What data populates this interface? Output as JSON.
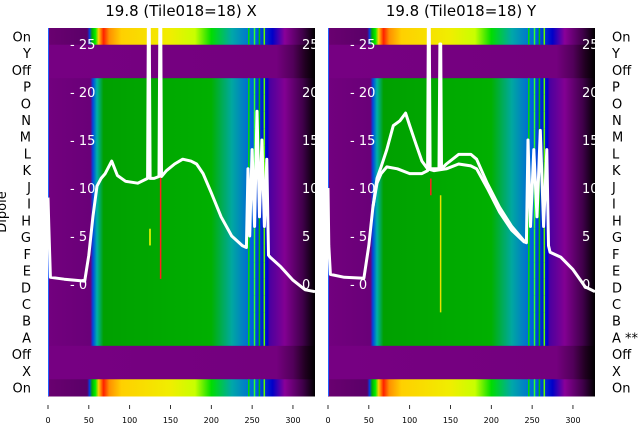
{
  "chart_data": [
    {
      "type": "heatmap",
      "title": "19.8 (Tile018=18) X",
      "ylabel": "Dipole",
      "xlim": [
        0,
        327
      ],
      "xticks": [
        0,
        50,
        100,
        150,
        200,
        250,
        300
      ],
      "rows": [
        "On",
        "Y",
        "Off",
        "P",
        "O",
        "N",
        "M",
        "L",
        "K",
        "J",
        "I",
        "H",
        "G",
        "F",
        "E",
        "D",
        "C",
        "B",
        "A",
        "Off",
        "X",
        "On"
      ],
      "row_kinds": [
        "on",
        "off",
        "off",
        "dipole",
        "dipole",
        "dipole",
        "dipole",
        "dipole",
        "dipole",
        "dipole",
        "dipole",
        "dipole",
        "dipole",
        "dipole",
        "dipole",
        "dipole",
        "dipole",
        "dipole",
        "dipole",
        "off",
        "off",
        "on"
      ],
      "overlay_ylim": [
        -3,
        26
      ],
      "overlay_yticks": [
        0,
        5,
        10,
        15,
        20,
        25
      ],
      "traces": [
        {
          "x": [
            0,
            1,
            3,
            20,
            45,
            50,
            55,
            60,
            65,
            70,
            78,
            85,
            95,
            110,
            122,
            123,
            124,
            125,
            130,
            136,
            137,
            138,
            139,
            145,
            155,
            165,
            175,
            182,
            190,
            200,
            212,
            225,
            238,
            243,
            245,
            247,
            250,
            253,
            256,
            259,
            262,
            265,
            268,
            270,
            272,
            285,
            300,
            315,
            327
          ],
          "y": [
            9,
            6,
            0.7,
            0.5,
            0.3,
            3,
            7,
            10.2,
            11,
            11.5,
            12.8,
            11.3,
            10.7,
            10.5,
            11,
            28,
            28,
            11,
            11,
            11.2,
            28,
            28,
            11.2,
            11.8,
            12.5,
            13,
            12.8,
            12.5,
            11.5,
            9.5,
            7,
            5,
            4,
            3.8,
            12,
            5,
            14,
            6,
            18,
            7,
            15,
            6,
            13,
            3,
            2.8,
            1.8,
            0.4,
            -0.6,
            -0.8
          ]
        }
      ]
    },
    {
      "type": "heatmap",
      "title": "19.8 (Tile018=18) Y",
      "xlim": [
        0,
        327
      ],
      "xticks": [
        0,
        50,
        100,
        150,
        200,
        250,
        300
      ],
      "rows": [
        "On",
        "Y",
        "Off",
        "P",
        "O",
        "N",
        "M",
        "L",
        "K",
        "J",
        "I",
        "H",
        "G",
        "F",
        "E",
        "D",
        "C",
        "B",
        "A **",
        "Off",
        "X",
        "On"
      ],
      "row_kinds": [
        "on",
        "off",
        "off",
        "dipole",
        "dipole",
        "dipole",
        "dipole",
        "dipole",
        "dipole",
        "dipole",
        "dipole",
        "dipole",
        "dipole",
        "dipole",
        "dipole",
        "dipole",
        "dipole",
        "dipole",
        "dipole",
        "off",
        "off",
        "on"
      ],
      "overlay_ylim": [
        -3,
        26
      ],
      "overlay_yticks": [
        0,
        5,
        10,
        15,
        20,
        25
      ],
      "traces": [
        {
          "x": [
            0,
            1,
            3,
            20,
            44,
            50,
            55,
            60,
            65,
            72,
            85,
            100,
            115,
            122,
            123,
            124,
            125,
            130,
            136,
            137,
            138,
            139,
            145,
            160,
            175,
            182,
            195,
            210,
            225,
            240,
            243,
            245,
            248,
            252,
            256,
            260,
            264,
            268,
            270,
            272,
            285,
            300,
            315,
            327
          ],
          "y": [
            10,
            4,
            1,
            0.7,
            0.6,
            4,
            8,
            10.5,
            11.5,
            12.2,
            12,
            11.5,
            11.5,
            11.8,
            28,
            28,
            12,
            12,
            12,
            25,
            25,
            12,
            12.5,
            13.5,
            13.5,
            13,
            10.5,
            8,
            6,
            4.5,
            4.3,
            15,
            6,
            14,
            7,
            16,
            6,
            14,
            4,
            3.3,
            2.8,
            1.5,
            -0.3,
            -0.8
          ]
        },
        {
          "x": [
            55,
            60,
            65,
            72,
            80,
            88,
            95,
            100,
            108,
            115,
            122,
            130,
            145,
            160,
            175,
            182,
            195,
            210,
            225,
            240,
            244
          ],
          "y": [
            8,
            11,
            12.2,
            14,
            16.5,
            17,
            17.8,
            16.5,
            14.5,
            12.8,
            12,
            11.8,
            12,
            12.5,
            12.3,
            12,
            10,
            7.5,
            5.6,
            4.4,
            4.3
          ]
        }
      ]
    }
  ]
}
